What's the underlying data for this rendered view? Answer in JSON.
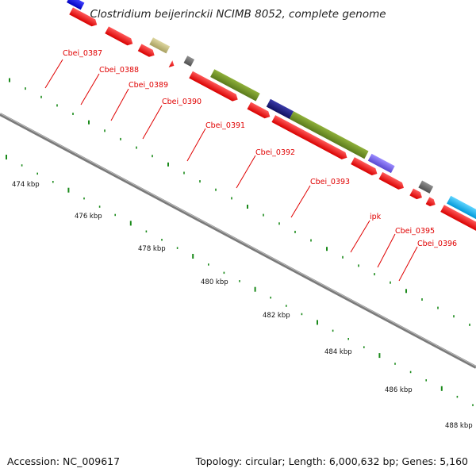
{
  "title": "Clostridium beijerinckii NCIMB 8052, complete genome",
  "footer": {
    "accession": "Accession: NC_009617",
    "summary": "Topology: circular; Length: 6,000,632 bp; Genes: 5,160"
  },
  "axis": {
    "tick_labels": [
      "474 kbp",
      "476 kbp",
      "478 kbp",
      "480 kbp",
      "482 kbp",
      "484 kbp",
      "486 kbp",
      "488 kbp"
    ]
  },
  "gene_labels": [
    "Cbei_0387",
    "Cbei_0388",
    "Cbei_0389",
    "Cbei_0390",
    "Cbei_0391",
    "Cbei_0392",
    "Cbei_0393",
    "ipk",
    "Cbei_0395",
    "Cbei_0396"
  ],
  "colors": {
    "backbone": "#808080",
    "cds": "#ff0000",
    "tick": "#1a8a1a",
    "label": "#e00000",
    "olive": "#6b8e23",
    "navy": "#1c1c80",
    "slate": "#7b68ee",
    "khaki": "#c8c080",
    "gray": "#707070",
    "cyan": "#00bfff",
    "blue": "#0000ff",
    "orange": "#ff8c00"
  }
}
